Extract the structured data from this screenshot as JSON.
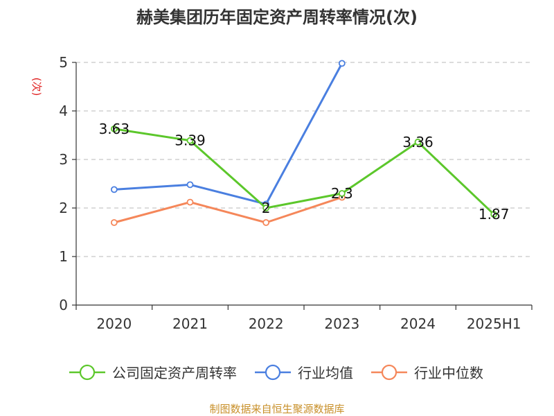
{
  "chart_data": {
    "type": "line",
    "title": "赫美集团历年固定资产周转率情况(次)",
    "ylabel": "(次)",
    "categories": [
      "2020",
      "2021",
      "2022",
      "2023",
      "2024",
      "2025H1"
    ],
    "ylim": [
      0,
      5
    ],
    "yticks": [
      0,
      1,
      2,
      3,
      4,
      5
    ],
    "grid": true,
    "legend_position": "bottom",
    "series": [
      {
        "name": "公司固定资产周转率",
        "color": "#5cc72b",
        "values": [
          3.63,
          3.39,
          2,
          2.3,
          3.36,
          1.87
        ],
        "labels": [
          "3.63",
          "3.39",
          "2",
          "2.3",
          "3.36",
          "1.87"
        ]
      },
      {
        "name": "行业均值",
        "color": "#4a7fe0",
        "values": [
          2.38,
          2.48,
          2.08,
          4.98,
          null,
          null
        ]
      },
      {
        "name": "行业中位数",
        "color": "#f5875a",
        "values": [
          1.7,
          2.12,
          1.7,
          2.22,
          null,
          null
        ]
      }
    ]
  },
  "source_note": "制图数据来自恒生聚源数据库",
  "colors": {
    "title": "#333333",
    "ylabel": "#e02020",
    "axis": "#333333",
    "grid": "#c8c8c8",
    "source": "#c8902a"
  }
}
